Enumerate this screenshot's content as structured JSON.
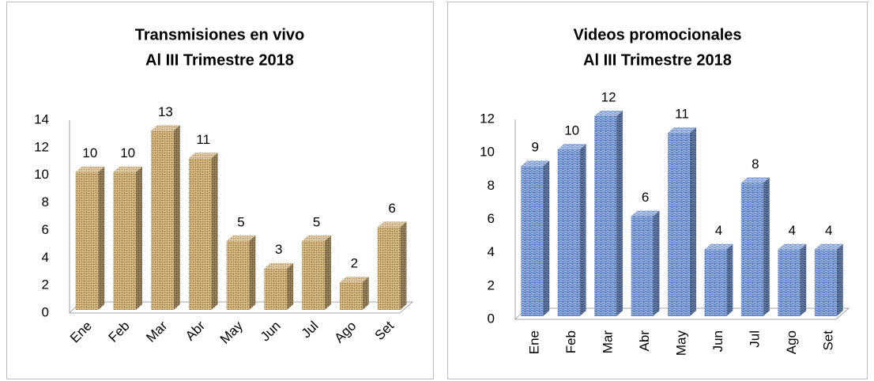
{
  "chart_data": [
    {
      "type": "bar3d",
      "title": "Transmisiones en vivo",
      "subtitle": "Al III Trimestre 2018",
      "categories": [
        "Ene",
        "Feb",
        "Mar",
        "Abr",
        "May",
        "Jun",
        "Jul",
        "Ago",
        "Set"
      ],
      "values": [
        10,
        10,
        13,
        11,
        5,
        3,
        5,
        2,
        6
      ],
      "color": "#d9bd87",
      "ylim": [
        0,
        14
      ],
      "yticks": [
        0,
        2,
        4,
        6,
        8,
        10,
        12,
        14
      ]
    },
    {
      "type": "bar3d",
      "title": "Videos promocionales",
      "subtitle": "Al III Trimestre 2018",
      "categories": [
        "Ene",
        "Feb",
        "Mar",
        "Abr",
        "May",
        "Jun",
        "Jul",
        "Ago",
        "Set"
      ],
      "values": [
        9,
        10,
        12,
        6,
        11,
        4,
        8,
        4,
        4
      ],
      "color": "#5f84c8",
      "ylim": [
        0,
        12
      ],
      "yticks": [
        0,
        2,
        4,
        6,
        8,
        10,
        12
      ]
    }
  ]
}
